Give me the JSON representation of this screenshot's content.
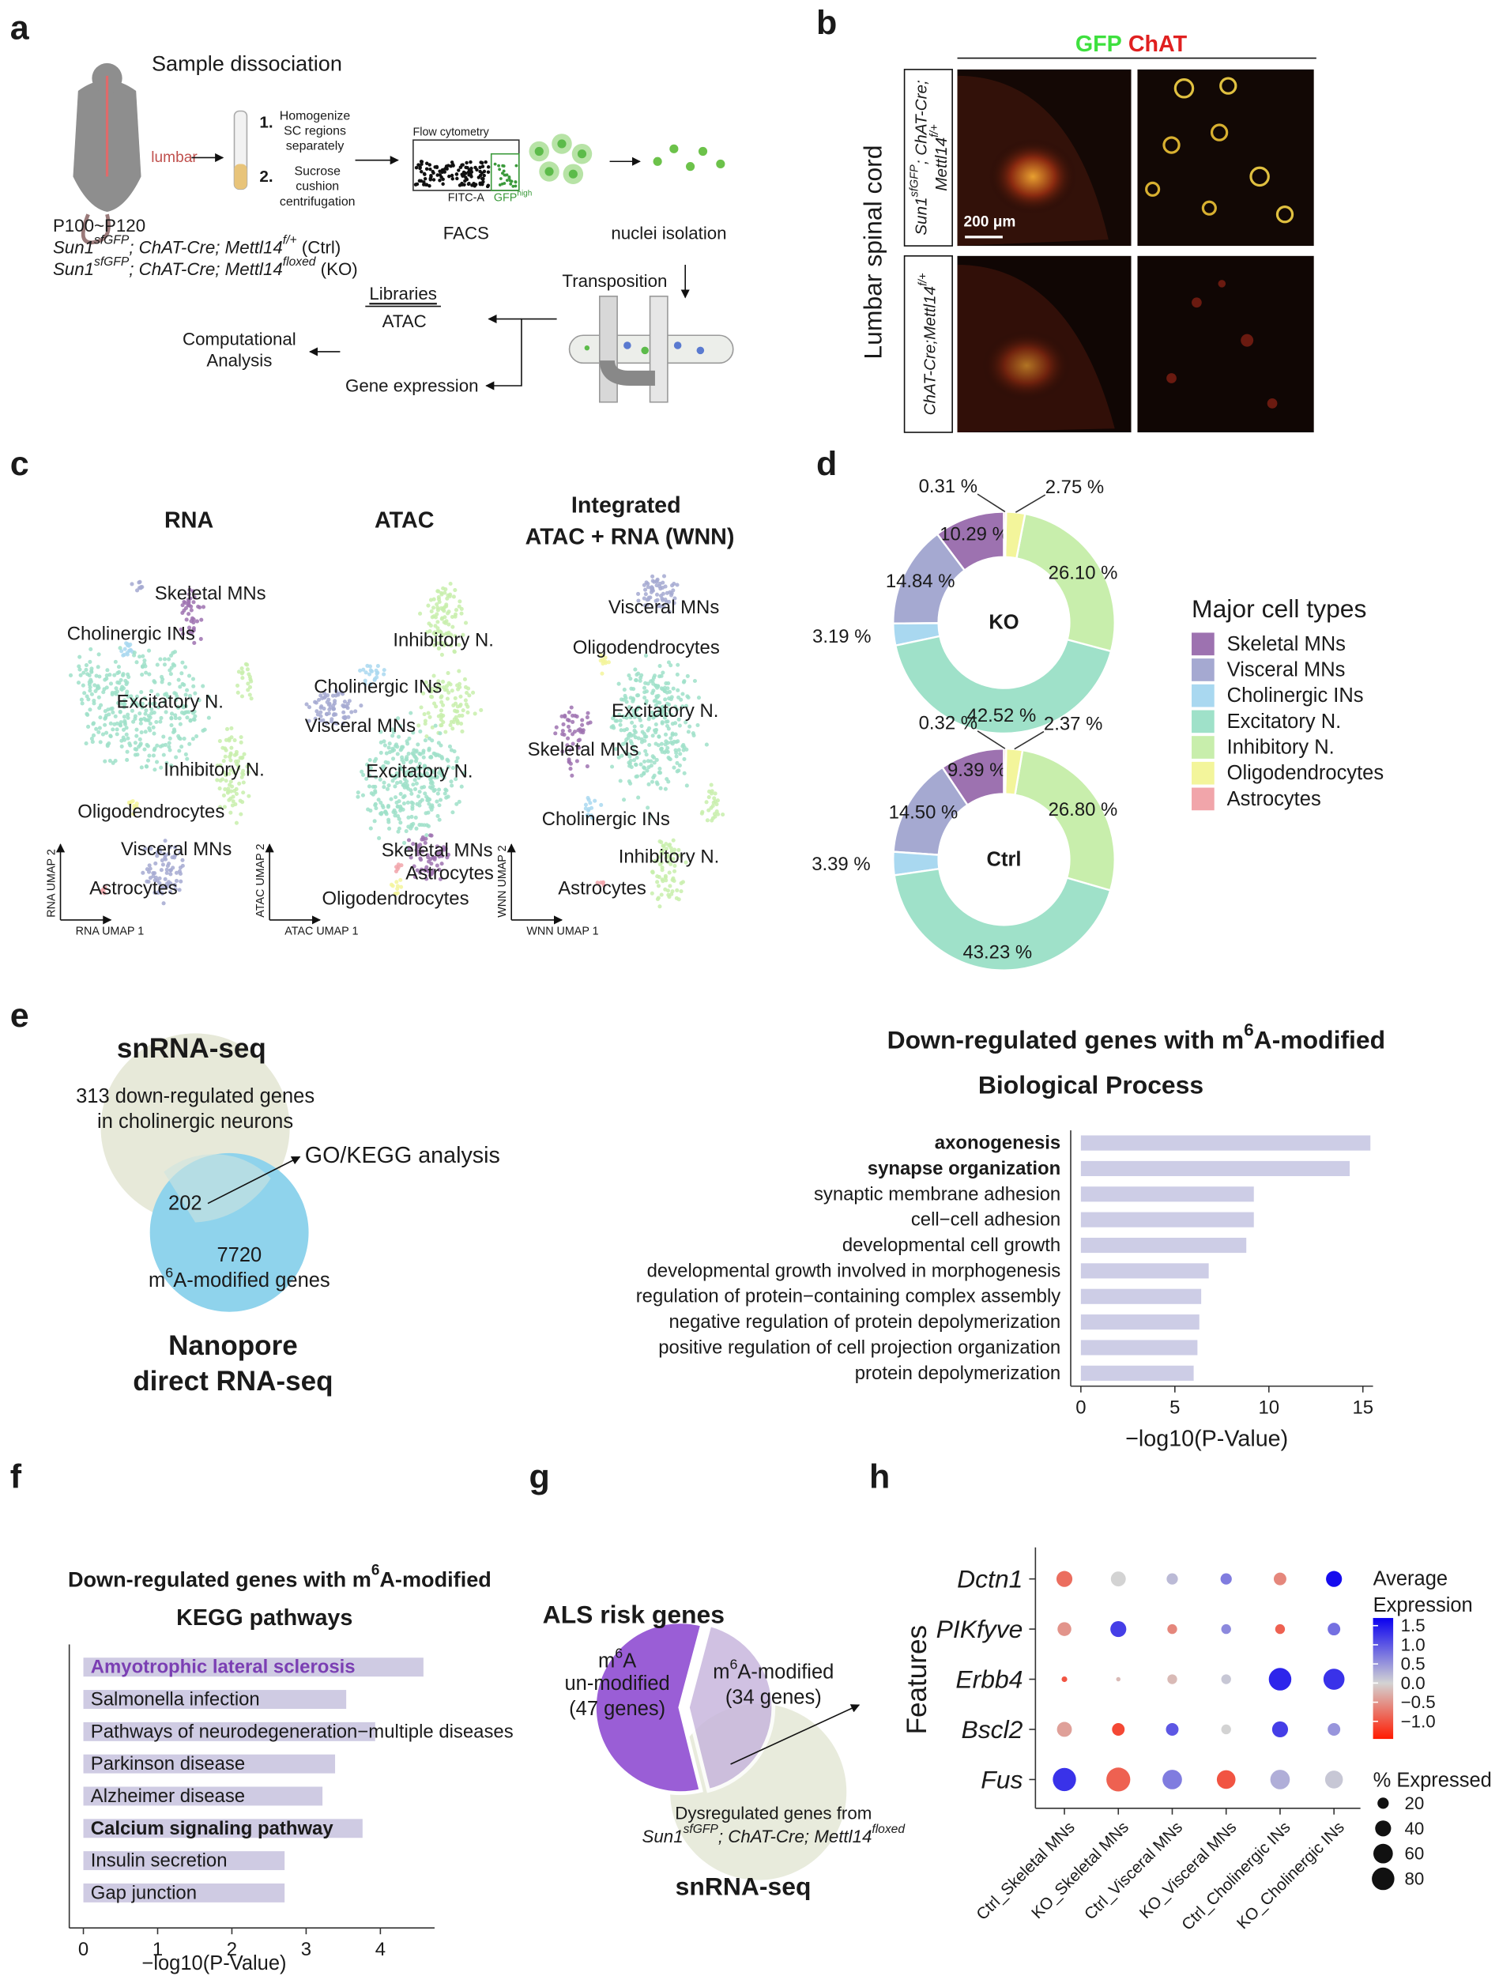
{
  "panel_labels": [
    "a",
    "b",
    "c",
    "d",
    "e",
    "f",
    "g",
    "h"
  ],
  "a": {
    "title": "Sample dissociation",
    "lumbar": "lumbar",
    "step1": "1.",
    "step1_text": [
      "Homogenize",
      "SC regions",
      "separately"
    ],
    "step2": "2.",
    "step2_text": [
      "Sucrose",
      "cushion",
      "centrifugation"
    ],
    "flow": "Flow cytometry",
    "flow_x": "FITC-A",
    "gate": [
      "GFP",
      "high"
    ],
    "facs": "FACS",
    "nuclei": "nuclei isolation",
    "age": "P100~P120",
    "ctrl": [
      "Sun1",
      "sfGFP",
      "; ChAT-Cre; Mettl14",
      "f/+",
      " (Ctrl)"
    ],
    "ko": [
      "Sun1",
      "sfGFP",
      "; ChAT-Cre; Mettl14",
      "floxed",
      " (KO)"
    ],
    "transposition": "Transposition",
    "libraries": "Libraries",
    "atac": "ATAC",
    "gene_expression": "Gene expression",
    "analysis": [
      "Computational",
      "Analysis"
    ]
  },
  "b": {
    "gfp": "GFP",
    "chat": "ChAT",
    "region": "Lumbar spinal cord",
    "row1": [
      "Sun1",
      "sfGFP",
      "; ChAT-Cre;",
      "Mettl14",
      "f/+"
    ],
    "row2": [
      "ChAT-Cre;Mettl14",
      "f/+"
    ],
    "scale": "200 μm"
  },
  "c": {
    "titles": [
      "RNA",
      "ATAC",
      "Integrated",
      "ATAC + RNA (WNN)"
    ],
    "rna_labels": [
      "Skeletal MNs",
      "Cholinergic INs",
      "Excitatory N.",
      "Inhibitory N.",
      "Oligodendrocytes",
      "Visceral MNs",
      "Astrocytes"
    ],
    "atac_labels": [
      "Inhibitory N.",
      "Cholinergic INs",
      "Visceral MNs",
      "Excitatory N.",
      "Skeletal MNs",
      "Astrocytes",
      "Oligodendrocytes"
    ],
    "wnn_labels": [
      "Visceral MNs",
      "Oligodendrocytes",
      "Excitatory N.",
      "Skeletal MNs",
      "Cholinergic INs",
      "Inhibitory N.",
      "Astrocytes"
    ],
    "axes": [
      [
        "RNA UMAP 1",
        "RNA UMAP 2"
      ],
      [
        "ATAC UMAP 1",
        "ATAC UMAP 2"
      ],
      [
        "WNN UMAP 1",
        "WNN UMAP 2"
      ]
    ]
  },
  "e": {
    "top": "snRNA-seq",
    "top_text": [
      "313 down-regulated genes",
      "in cholinergic neurons"
    ],
    "overlap": "202",
    "arrow": "GO/KEGG analysis",
    "right": "7720",
    "right_text": [
      "m",
      "6",
      "A-modified genes"
    ],
    "bottom": [
      "Nanopore",
      "direct RNA-seq"
    ]
  },
  "chart_data": [
    {
      "type": "donut",
      "center_label": "KO",
      "legend_title": "Major cell types",
      "categories": [
        "Skeletal MNs",
        "Visceral MNs",
        "Cholinergic INs",
        "Excitatory N.",
        "Inhibitory N.",
        "Oligodendrocytes",
        "Astrocytes"
      ],
      "colors": [
        "#9d72b0",
        "#a5a9d1",
        "#a9d8f0",
        "#9fe1c9",
        "#c8eeac",
        "#f3f59b",
        "#f1a5aa"
      ],
      "values": [
        10.29,
        14.84,
        3.19,
        42.52,
        26.1,
        2.75,
        0.31
      ],
      "value_labels": [
        "10.29 %",
        "14.84 %",
        "3.19 %",
        "42.52 %",
        "26.10 %",
        "2.75 %",
        "0.31 %"
      ]
    },
    {
      "type": "donut",
      "center_label": "Ctrl",
      "values": [
        9.39,
        14.5,
        3.39,
        43.23,
        26.8,
        2.37,
        0.32
      ],
      "value_labels": [
        "9.39 %",
        "14.50 %",
        "3.39 %",
        "43.23 %",
        "26.80 %",
        "2.37 %",
        "0.32 %"
      ]
    },
    {
      "type": "hbar",
      "title": [
        "Down-regulated genes with m",
        "6",
        "A-modified"
      ],
      "subtitle": "Biological Process",
      "categories": [
        "axonogenesis",
        "synapse organization",
        "synaptic membrane adhesion",
        "cell−cell adhesion",
        "developmental cell growth",
        "developmental growth involved in morphogenesis",
        "regulation of protein−containing complex assembly",
        "negative regulation of protein depolymerization",
        "positive regulation of cell projection organization",
        "protein depolymerization"
      ],
      "values": [
        15.4,
        14.3,
        9.2,
        9.2,
        8.8,
        6.8,
        6.4,
        6.3,
        6.2,
        6.0
      ],
      "bold_indices": [
        0,
        1
      ],
      "color": "#cdcde6",
      "xlim": [
        -0.54,
        15.54
      ],
      "xticks": [
        0,
        5,
        10,
        15
      ],
      "xlabel": "−log10(P-Value)"
    },
    {
      "type": "hbar",
      "title": [
        "Down-regulated genes with m",
        "6",
        "A-modified"
      ],
      "subtitle": "KEGG pathways",
      "categories": [
        "Amyotrophic lateral sclerosis",
        "Salmonella infection",
        "Pathways of neurodegeneration−multiple diseases",
        "Parkinson disease",
        "Alzheimer disease",
        "Calcium signaling pathway",
        "Insulin secretion",
        "Gap junction"
      ],
      "values": [
        4.58,
        3.54,
        3.93,
        3.39,
        3.22,
        3.76,
        2.71,
        2.71
      ],
      "bold_indices": [
        0,
        5
      ],
      "highlight_color": "#7b3fb3",
      "highlight_index": 0,
      "color": "#cfcbe3",
      "xlim": [
        -0.19,
        4.73
      ],
      "xticks": [
        0,
        1,
        2,
        3,
        4
      ],
      "xlabel": "−log10(P-Value)"
    },
    {
      "type": "pie",
      "title": "ALS risk genes",
      "categories": [
        [
          "m",
          "6",
          "A",
          "un-modified"
        ],
        [
          "m",
          "6",
          "A-modified"
        ]
      ],
      "values": [
        47,
        34
      ],
      "value_labels": [
        "(47 genes)",
        "(34 genes)"
      ],
      "colors": [
        "#9a5ed6",
        "#c8b7dd"
      ],
      "overlap": {
        "text": "Dysregulated genes from",
        "genotype": [
          "Sun1",
          "sfGFP",
          "; ChAT-Cre; Mettl14",
          "floxed"
        ],
        "method": "snRNA-seq"
      }
    },
    {
      "type": "dotplot",
      "ylabel": "Features",
      "categories": [
        "Ctrl_Skeletal MNs",
        "KO_Skeletal MNs",
        "Ctrl_Visceral MNs",
        "KO_Visceral MNs",
        "Ctrl_Cholinergic INs",
        "KO_Cholinergic INs"
      ],
      "genes": [
        "Dctn1",
        "PIKfyve",
        "Erbb4",
        "Bscl2",
        "Fus"
      ],
      "values": [
        [
          -0.8,
          0.0,
          0.2,
          0.7,
          -0.6,
          1.6
        ],
        [
          -0.5,
          1.2,
          -0.6,
          0.6,
          -0.9,
          0.8
        ],
        [
          -1.0,
          -0.2,
          -0.2,
          0.1,
          1.4,
          1.3
        ],
        [
          -0.4,
          -1.1,
          1.0,
          0.0,
          1.2,
          0.5
        ],
        [
          1.3,
          -0.9,
          0.7,
          -1.0,
          0.3,
          0.1
        ]
      ],
      "sizes": [
        [
          40,
          35,
          20,
          20,
          25,
          40
        ],
        [
          30,
          40,
          15,
          15,
          15,
          25
        ],
        [
          5,
          3,
          15,
          15,
          80,
          70
        ],
        [
          35,
          25,
          25,
          15,
          40,
          25
        ],
        [
          85,
          90,
          60,
          55,
          60,
          50
        ]
      ],
      "color_title": [
        "Average",
        "Expression"
      ],
      "clim": [
        -1.46,
        1.7
      ],
      "cticks": [
        {
          "value": 1.5,
          "label": "1.5"
        },
        {
          "value": 1,
          "label": "1.0"
        },
        {
          "value": 0.5,
          "label": "0.5"
        },
        {
          "value": 0,
          "label": "0.0"
        },
        {
          "value": -0.5,
          "label": "−0.5"
        },
        {
          "value": -1,
          "label": "−1.0"
        }
      ],
      "color_low": "#ff1a00",
      "color_mid": "#d3d3d3",
      "color_high": "#0a00f0",
      "size_title": "% Expressed",
      "size_ticks": [
        20,
        40,
        60,
        80
      ]
    }
  ]
}
